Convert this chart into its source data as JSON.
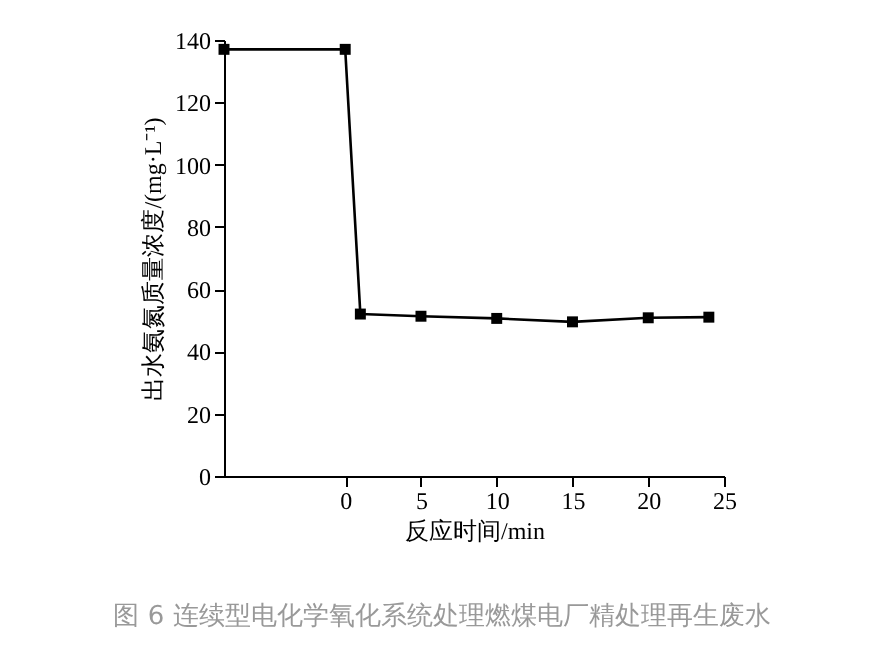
{
  "chart_data": {
    "type": "line",
    "xlabel": "反应时间/min",
    "ylabel": "出水氨氮质量浓度/(mg·L⁻¹)",
    "x": [
      -8,
      0,
      1,
      5,
      10,
      15,
      20,
      24
    ],
    "series": [
      {
        "color": "#000000",
        "values": [
          137,
          137,
          52,
          51.3,
          50.6,
          49.5,
          50.8,
          51
        ]
      }
    ],
    "xlim": [
      -8,
      25
    ],
    "xticks": [
      0,
      5,
      10,
      15,
      20,
      25
    ],
    "ylim": [
      0,
      140
    ],
    "yticks": [
      0,
      20,
      40,
      60,
      80,
      100,
      120,
      140
    ],
    "grid": false,
    "marker": "square",
    "line_style": "solid",
    "annotations": [
      "图 6 连续型电化学氧化系统处理燃煤电厂精处理再生废水"
    ]
  }
}
